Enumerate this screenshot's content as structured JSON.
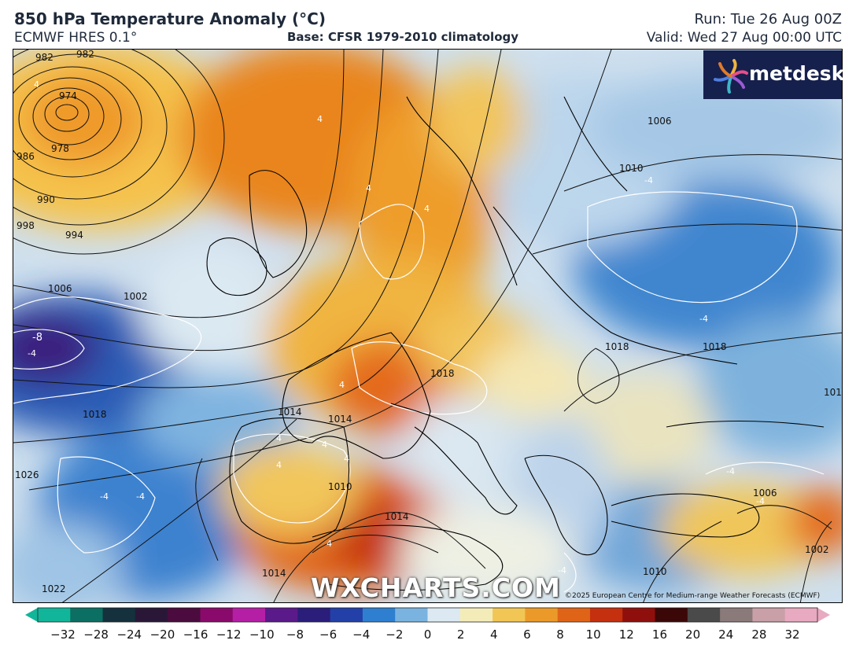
{
  "header": {
    "title": "850 hPa Temperature Anomaly (°C)",
    "model": "ECMWF HRES 0.1°",
    "base": "Base: CFSR 1979-2010 climatology",
    "run": "Run: Tue 26 Aug 00Z",
    "valid": "Valid: Wed 27 Aug 00:00 UTC"
  },
  "logo": {
    "text": "metdesk",
    "icon": "pinwheel-logo-icon"
  },
  "watermark": "WXCHARTS.COM",
  "copyright": "©2025 European Centre for Medium-range Weather Forecasts (ECMWF)",
  "colorbar": {
    "ticks": [
      "−32",
      "−28",
      "−24",
      "−20",
      "−16",
      "−12",
      "−10",
      "−8",
      "−6",
      "−4",
      "−2",
      "0",
      "2",
      "4",
      "6",
      "8",
      "10",
      "12",
      "16",
      "20",
      "24",
      "28",
      "32"
    ],
    "colors": [
      "#11b59a",
      "#0c6f63",
      "#14313d",
      "#2a1738",
      "#4b0b3e",
      "#8a0a6b",
      "#b51fa6",
      "#5a1a8a",
      "#2a1e7a",
      "#2340a8",
      "#2f7fd0",
      "#7ab3e0",
      "#dce9f2",
      "#f4ecb8",
      "#f2c655",
      "#eb9a2a",
      "#e06417",
      "#c5300e",
      "#8f0f0c",
      "#3c0707",
      "#4a4a4a",
      "#8a7a7a",
      "#c9a0a8",
      "#e8aac0"
    ]
  },
  "contour_labels": {
    "isobars": [
      "982",
      "982",
      "974",
      "978",
      "986",
      "990",
      "994",
      "998",
      "1002",
      "1006",
      "1006",
      "1010",
      "1010",
      "1010",
      "1014",
      "1014",
      "1014",
      "1014",
      "1018",
      "1018",
      "1018",
      "1018",
      "1018",
      "1022",
      "1026",
      "1002",
      "1006"
    ],
    "anomaly": [
      "4",
      "4",
      "4",
      "4",
      "4",
      "4",
      "4",
      "4",
      "4",
      "4",
      "-4",
      "-4",
      "-4",
      "-4",
      "-4",
      "-4",
      "-4",
      "-8",
      "-4"
    ]
  }
}
